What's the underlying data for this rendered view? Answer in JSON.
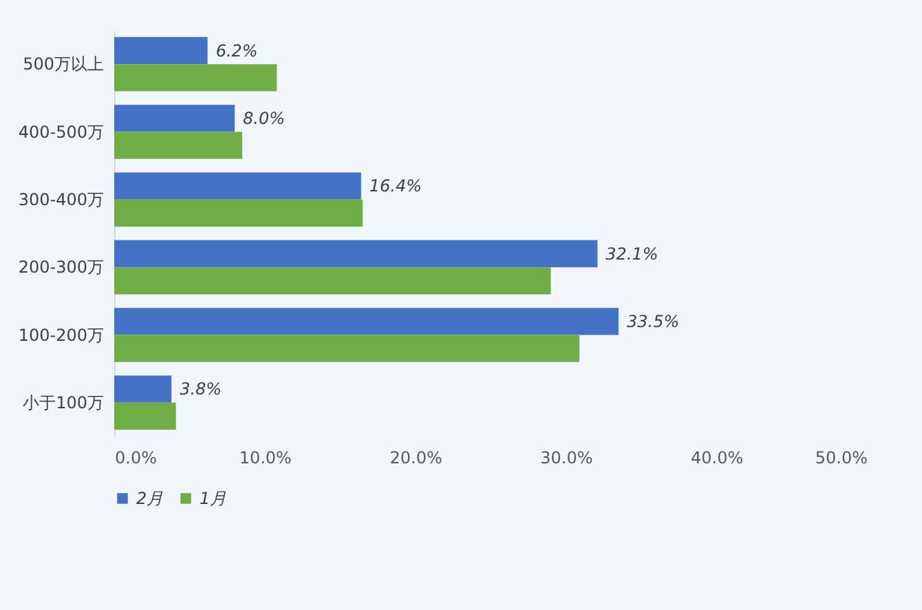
{
  "chart_data": {
    "type": "bar",
    "orientation": "horizontal",
    "categories": [
      "500万以上",
      "400-500万",
      "300-400万",
      "200-300万",
      "100-200万",
      "小于100万"
    ],
    "series": [
      {
        "name": "2月",
        "color": "#4472c4",
        "values": [
          6.2,
          8.0,
          16.4,
          32.1,
          33.5,
          3.8
        ],
        "value_labels": [
          "6.2%",
          "8.0%",
          "16.4%",
          "32.1%",
          "33.5%",
          "3.8%"
        ]
      },
      {
        "name": "1月",
        "color": "#70ad47",
        "values": [
          10.8,
          8.5,
          16.5,
          29.0,
          30.9,
          4.1
        ]
      }
    ],
    "xlim": [
      0,
      50
    ],
    "xticks": [
      {
        "value": 0,
        "label": "0.0%"
      },
      {
        "value": 10,
        "label": "10.0%"
      },
      {
        "value": 20,
        "label": "20.0%"
      },
      {
        "value": 30,
        "label": "30.0%"
      },
      {
        "value": 40,
        "label": "40.0%"
      },
      {
        "value": 50,
        "label": "50.0%"
      }
    ],
    "grid": false,
    "legend": "bottom"
  }
}
